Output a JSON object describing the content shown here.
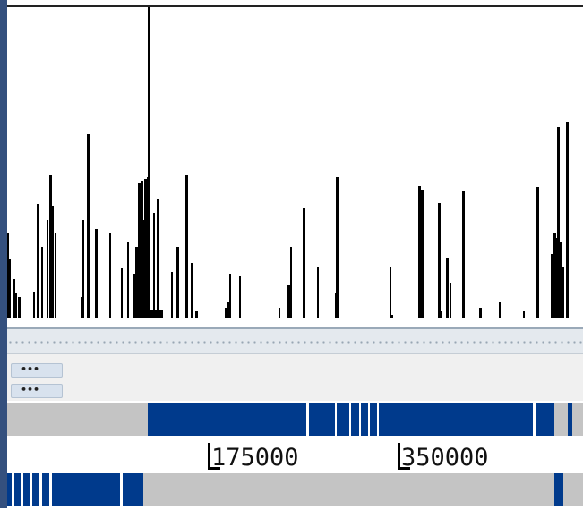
{
  "controls": {
    "button1_label": "•••",
    "button2_label": "•••"
  },
  "ruler": {
    "ticks": [
      "175000",
      "350000"
    ]
  },
  "colors": {
    "track_fill": "#003a8c",
    "track_empty": "#c4c4c4",
    "bars": "#000000",
    "window_edge": "#34507e"
  },
  "icons": [
    "resize-grip-icon"
  ]
}
